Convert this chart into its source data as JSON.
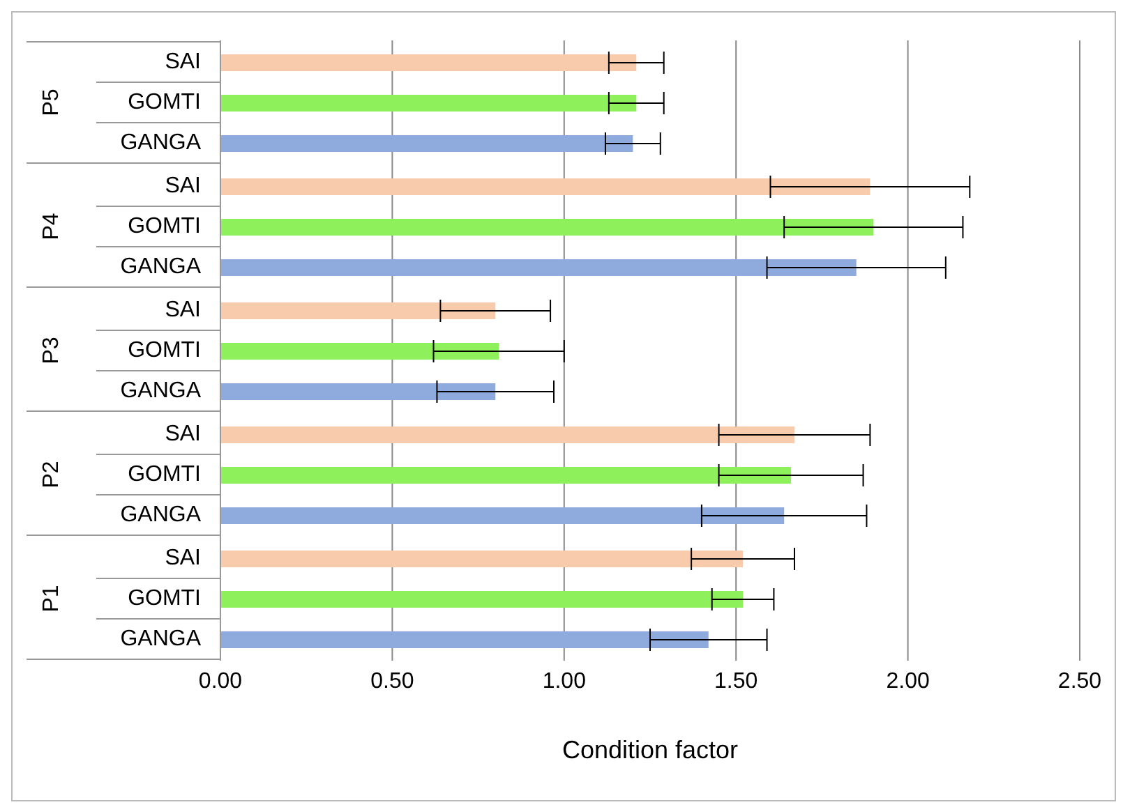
{
  "chart_data": {
    "type": "bar",
    "orientation": "horizontal",
    "xlabel": "Condition factor",
    "categories": [
      "P5",
      "P4",
      "P3",
      "P2",
      "P1"
    ],
    "series": [
      {
        "name": "SAI",
        "color": "#f8cbad",
        "values": [
          1.21,
          1.89,
          0.8,
          1.67,
          1.52
        ],
        "errors": [
          0.08,
          0.29,
          0.16,
          0.22,
          0.15
        ]
      },
      {
        "name": "GOMTI",
        "color": "#8ef05a",
        "values": [
          1.21,
          1.9,
          0.81,
          1.66,
          1.52
        ],
        "errors": [
          0.08,
          0.26,
          0.19,
          0.21,
          0.09
        ]
      },
      {
        "name": "GANGA",
        "color": "#8faadc",
        "values": [
          1.2,
          1.85,
          0.8,
          1.64,
          1.42
        ],
        "errors": [
          0.08,
          0.26,
          0.17,
          0.24,
          0.17
        ]
      }
    ],
    "xlim": [
      0,
      2.5
    ],
    "xticks": [
      {
        "value": 0,
        "label": "0.00"
      },
      {
        "value": 0.5,
        "label": "0.50"
      },
      {
        "value": 1,
        "label": "1.00"
      },
      {
        "value": 1.5,
        "label": "1.50"
      },
      {
        "value": 2,
        "label": "2.00"
      },
      {
        "value": 2.5,
        "label": "2.50"
      }
    ],
    "grid": "x",
    "legend": false
  }
}
